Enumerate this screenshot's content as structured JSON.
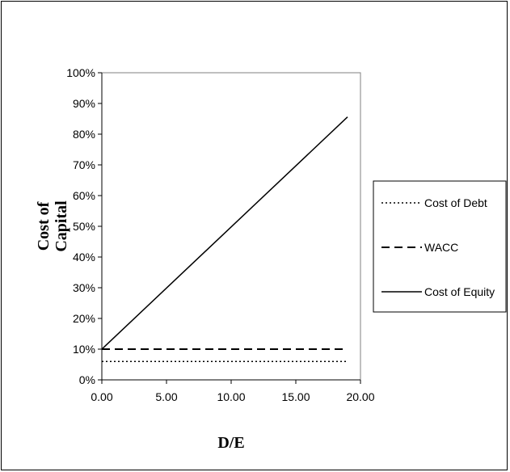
{
  "chart_data": {
    "type": "line",
    "title": "",
    "xlabel": "D/E",
    "ylabel_lines": [
      "Cost of",
      "Capital"
    ],
    "xlim": [
      0,
      20
    ],
    "ylim": [
      0,
      1
    ],
    "x_ticks": [
      "0.00",
      "5.00",
      "10.00",
      "15.00",
      "20.00"
    ],
    "x_tick_values": [
      0,
      5,
      10,
      15,
      20
    ],
    "y_ticks": [
      "0%",
      "10%",
      "20%",
      "30%",
      "40%",
      "50%",
      "60%",
      "70%",
      "80%",
      "90%",
      "100%"
    ],
    "y_tick_values": [
      0,
      0.1,
      0.2,
      0.3,
      0.4,
      0.5,
      0.6,
      0.7,
      0.8,
      0.9,
      1.0
    ],
    "grid": false,
    "legend_position": "right",
    "series": [
      {
        "name": "Cost of Debt",
        "style": "dotted",
        "x": [
          0,
          19
        ],
        "values": [
          0.06,
          0.06
        ]
      },
      {
        "name": "WACC",
        "style": "dashed",
        "x": [
          0,
          19
        ],
        "values": [
          0.1,
          0.1
        ]
      },
      {
        "name": "Cost of Equity",
        "style": "solid",
        "x": [
          0,
          19
        ],
        "values": [
          0.1,
          0.856
        ]
      }
    ]
  }
}
